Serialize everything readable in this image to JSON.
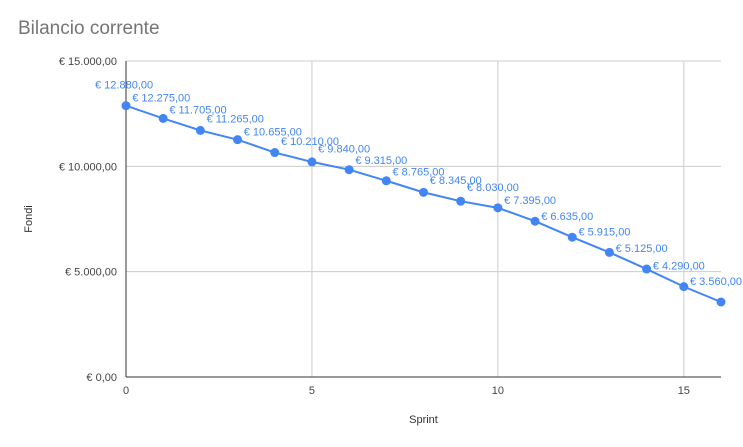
{
  "chart_data": {
    "type": "line",
    "title": "Bilancio corrente",
    "xlabel": "Sprint",
    "ylabel": "Fondi",
    "xlim": [
      0,
      16
    ],
    "ylim": [
      0,
      15000
    ],
    "x_ticks": [
      "0",
      "5",
      "10",
      "15"
    ],
    "y_ticks": [
      "€ 0,00",
      "€ 5.000,00",
      "€ 10.000,00",
      "€ 15.000,00"
    ],
    "grid": true,
    "color": "#4285f4",
    "series": [
      {
        "x": [
          0,
          1,
          2,
          3,
          4,
          5,
          6,
          7,
          8,
          9,
          10,
          11,
          12,
          13,
          14,
          15,
          16
        ],
        "values": [
          12880,
          12275,
          11705,
          11265,
          10655,
          10210,
          9840,
          9315,
          8765,
          8345,
          8030,
          7395,
          6635,
          5915,
          5125,
          4290,
          3560
        ],
        "labels": [
          "€ 12.880,00",
          "€ 12.275,00",
          "€ 11.705,00",
          "€ 11.265,00",
          "€ 10.655,00",
          "€ 10.210,00",
          "€ 9.840,00",
          "€ 9.315,00",
          "€ 8.765,00",
          "€ 8.345,00",
          "€ 8.030,00",
          "€ 7.395,00",
          "€ 6.635,00",
          "€ 5.915,00",
          "€ 5.125,00",
          "€ 4.290,00",
          "€ 3.560,00"
        ]
      }
    ]
  }
}
